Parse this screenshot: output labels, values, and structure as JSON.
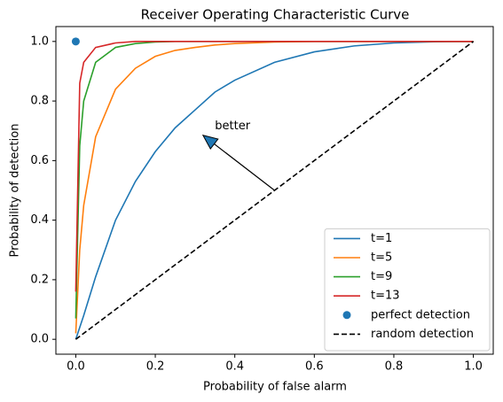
{
  "chart_data": {
    "type": "line",
    "title": "Receiver Operating Characteristic Curve",
    "xlabel": "Probability of false alarm",
    "ylabel": "Probability of detection",
    "xlim": [
      -0.05,
      1.05
    ],
    "ylim": [
      -0.05,
      1.05
    ],
    "xticks": [
      {
        "value": 0,
        "label": "0.0"
      },
      0.2,
      0.4,
      0.6,
      0.8,
      {
        "value": 1,
        "label": "1.0"
      }
    ],
    "yticks": [
      {
        "value": 0,
        "label": "0.0"
      },
      0.2,
      0.4,
      0.6,
      0.8,
      {
        "value": 1,
        "label": "1.0"
      }
    ],
    "grid": false,
    "legend": "lower right",
    "annotation": "better",
    "series": [
      {
        "name": "t=1",
        "color": "#1f77b4",
        "style": "line",
        "x": [
          0,
          0.01,
          0.02,
          0.05,
          0.1,
          0.15,
          0.2,
          0.25,
          0.3,
          0.35,
          0.4,
          0.5,
          0.6,
          0.7,
          0.8,
          0.9,
          1
        ],
        "values": [
          0,
          0.04,
          0.08,
          0.21,
          0.4,
          0.53,
          0.63,
          0.71,
          0.77,
          0.83,
          0.87,
          0.93,
          0.965,
          0.985,
          0.995,
          0.999,
          1
        ]
      },
      {
        "name": "t=5",
        "color": "#ff7f0e",
        "style": "line",
        "x": [
          0,
          0.01,
          0.02,
          0.05,
          0.1,
          0.15,
          0.2,
          0.25,
          0.3,
          0.35,
          0.4,
          0.5,
          0.6,
          0.7,
          0.8,
          0.9,
          1
        ],
        "values": [
          0.02,
          0.3,
          0.45,
          0.68,
          0.84,
          0.91,
          0.95,
          0.97,
          0.98,
          0.988,
          0.993,
          0.998,
          1,
          1,
          1,
          1,
          1
        ]
      },
      {
        "name": "t=9",
        "color": "#2ca02c",
        "style": "line",
        "x": [
          0,
          0.01,
          0.02,
          0.05,
          0.1,
          0.15,
          0.2,
          0.25,
          0.3,
          0.35,
          0.4,
          0.5,
          0.6,
          0.7,
          0.8,
          0.9,
          1
        ],
        "values": [
          0.07,
          0.65,
          0.8,
          0.93,
          0.98,
          0.993,
          0.998,
          1,
          1,
          1,
          1,
          1,
          1,
          1,
          1,
          1,
          1
        ]
      },
      {
        "name": "t=13",
        "color": "#d62728",
        "style": "line",
        "x": [
          0,
          0.01,
          0.02,
          0.05,
          0.1,
          0.15,
          0.2,
          0.25,
          0.3,
          0.35,
          0.4,
          0.5,
          0.6,
          0.7,
          0.8,
          0.9,
          1
        ],
        "values": [
          0.16,
          0.86,
          0.93,
          0.98,
          0.995,
          1,
          1,
          1,
          1,
          1,
          1,
          1,
          1,
          1,
          1,
          1,
          1
        ]
      },
      {
        "name": "perfect detection",
        "color": "#1f77b4",
        "style": "scatter",
        "x": [
          0
        ],
        "values": [
          1
        ]
      },
      {
        "name": "random detection",
        "color": "#000000",
        "style": "dashed",
        "x": [
          0,
          1
        ],
        "values": [
          0,
          1
        ]
      }
    ]
  }
}
